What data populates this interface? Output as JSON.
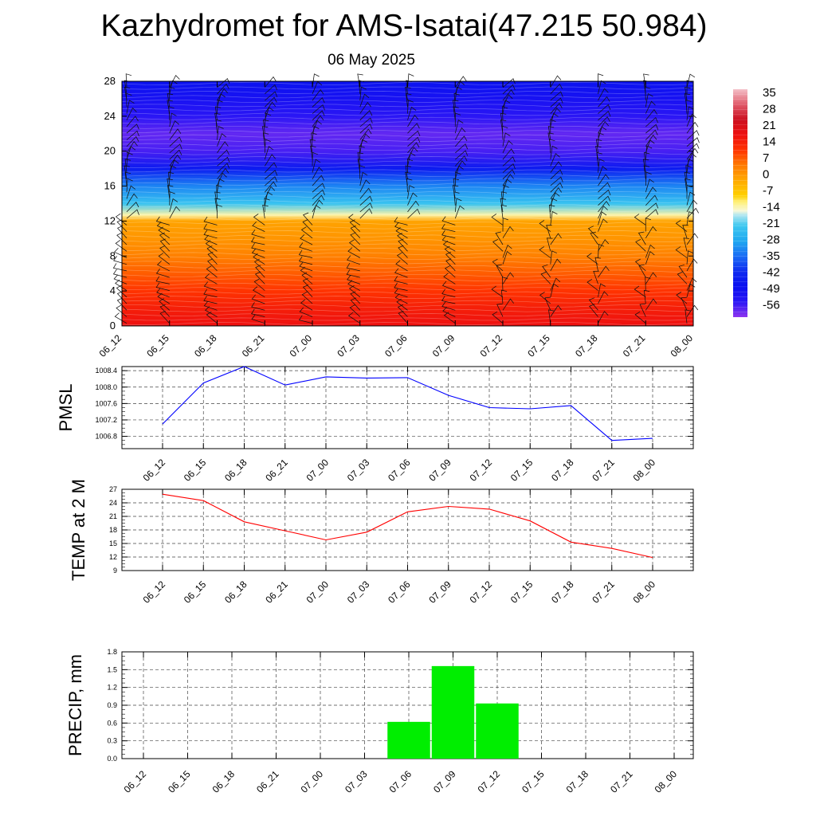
{
  "title": "Kazhydromet for AMS-Isatai(47.215 50.984)",
  "subtitle": "06 May 2025",
  "time_labels": [
    "06_12",
    "06_15",
    "06_18",
    "06_21",
    "07_00",
    "07_03",
    "07_06",
    "07_09",
    "07_12",
    "07_15",
    "07_18",
    "07_21",
    "08_00"
  ],
  "colors": {
    "pmsl_line": "#0000ff",
    "temp_line": "#ff0000",
    "precip_bar": "#00ee00"
  },
  "chart_data": [
    {
      "type": "heatmap",
      "name": "upper-air-cross-section",
      "x": [
        "06_12",
        "06_15",
        "06_18",
        "06_21",
        "07_00",
        "07_03",
        "07_06",
        "07_09",
        "07_12",
        "07_15",
        "07_18",
        "07_21",
        "08_00"
      ],
      "ylim": [
        0,
        28
      ],
      "yticks": [
        0,
        4,
        8,
        12,
        16,
        20,
        24,
        28
      ],
      "colorbar": {
        "labels": [
          "35",
          "28",
          "21",
          "14",
          "7",
          "0",
          "-7",
          "-14",
          "-21",
          "-28",
          "-35",
          "-42",
          "-49",
          "-56"
        ],
        "range": [
          -63,
          42
        ]
      },
      "temperature_profile": [
        {
          "y": 0,
          "t": 21
        },
        {
          "y": 2,
          "t": 18
        },
        {
          "y": 4,
          "t": 14
        },
        {
          "y": 6,
          "t": 10
        },
        {
          "y": 8,
          "t": 6
        },
        {
          "y": 10,
          "t": 3
        },
        {
          "y": 12,
          "t": 1
        },
        {
          "y": 12.7,
          "t": -12
        },
        {
          "y": 14,
          "t": -22
        },
        {
          "y": 16,
          "t": -32
        },
        {
          "y": 18,
          "t": -46
        },
        {
          "y": 20,
          "t": -58
        },
        {
          "y": 22,
          "t": -60
        },
        {
          "y": 24,
          "t": -56
        },
        {
          "y": 26,
          "t": -52
        },
        {
          "y": 28,
          "t": -48
        }
      ],
      "wind_barbs": "present"
    },
    {
      "type": "line",
      "ylabel": "PMSL",
      "x": [
        "06_12",
        "06_15",
        "06_18",
        "06_21",
        "07_00",
        "07_03",
        "07_06",
        "07_09",
        "07_12",
        "07_15",
        "07_18",
        "07_21",
        "08_00"
      ],
      "series": [
        {
          "values": [
            1007.1,
            1008.1,
            1008.5,
            1008.05,
            1008.25,
            1008.22,
            1008.23,
            1007.8,
            1007.5,
            1007.47,
            1007.55,
            1006.7,
            1006.75
          ]
        }
      ],
      "ylim": [
        1006.5,
        1008.5
      ],
      "yticks": [
        "1006.8",
        "1007.2",
        "1007.6",
        "1008.0",
        "1008.4"
      ],
      "grid": true
    },
    {
      "type": "line",
      "ylabel": "TEMP at 2 M",
      "x": [
        "06_12",
        "06_15",
        "06_18",
        "06_21",
        "07_00",
        "07_03",
        "07_06",
        "07_09",
        "07_12",
        "07_15",
        "07_18",
        "07_21",
        "08_00"
      ],
      "series": [
        {
          "values": [
            25.9,
            24.5,
            19.8,
            17.8,
            15.8,
            17.5,
            22.0,
            23.2,
            22.6,
            20.0,
            15.3,
            13.9,
            11.9
          ]
        }
      ],
      "ylim": [
        9,
        27
      ],
      "yticks": [
        "9",
        "12",
        "15",
        "18",
        "21",
        "24",
        "27"
      ],
      "grid": true
    },
    {
      "type": "bar",
      "ylabel": "PRECIP, mm",
      "categories": [
        "06_12",
        "06_15",
        "06_18",
        "06_21",
        "07_00",
        "07_03",
        "07_06",
        "07_09",
        "07_12",
        "07_15",
        "07_18",
        "07_21",
        "08_00"
      ],
      "values": [
        0,
        0,
        0,
        0,
        0,
        0,
        0.62,
        1.56,
        0.93,
        0,
        0,
        0,
        0
      ],
      "ylim": [
        0,
        1.8
      ],
      "yticks": [
        "0.0",
        "0.3",
        "0.6",
        "0.9",
        "1.2",
        "1.5",
        "1.8"
      ],
      "grid": true
    }
  ]
}
